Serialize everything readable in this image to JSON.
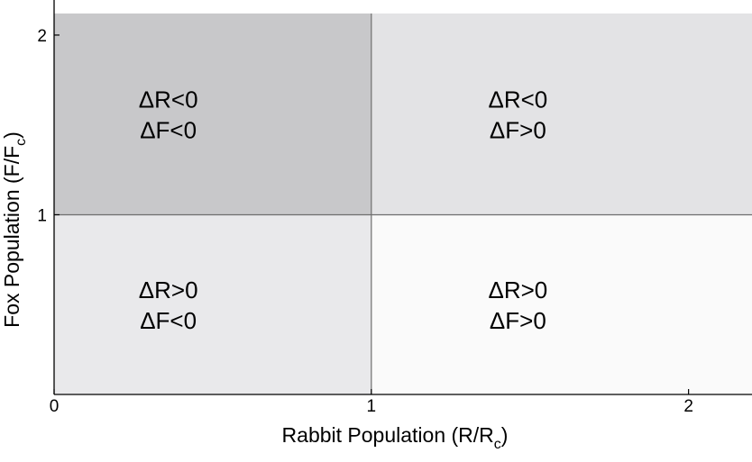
{
  "diagram": {
    "xlabel": {
      "main": "Rabbit Population (R/R",
      "sub": "c",
      "close": ")"
    },
    "ylabel": {
      "main": "Fox Population (F/F",
      "sub": "c",
      "close": ")"
    },
    "xlim": [
      0,
      2.2
    ],
    "ylim": [
      0,
      2.12
    ],
    "xticks": [
      {
        "value": 0,
        "label": "0"
      },
      {
        "value": 1,
        "label": "1"
      },
      {
        "value": 2,
        "label": "2"
      }
    ],
    "yticks": [
      {
        "value": 1,
        "label": "1"
      },
      {
        "value": 2,
        "label": "2"
      }
    ],
    "regions": [
      {
        "x": [
          0,
          1
        ],
        "y": [
          1,
          2.12
        ],
        "fill": "#c8c8ca",
        "line1": "ΔR<0",
        "line2": "ΔF<0"
      },
      {
        "x": [
          1,
          2.2
        ],
        "y": [
          1,
          2.12
        ],
        "fill": "#e3e3e5",
        "line1": "ΔR<0",
        "line2": "ΔF>0"
      },
      {
        "x": [
          0,
          1
        ],
        "y": [
          0,
          1
        ],
        "fill": "#e9e9eb",
        "line1": "ΔR>0",
        "line2": "ΔF<0"
      },
      {
        "x": [
          1,
          2.2
        ],
        "y": [
          0,
          1
        ],
        "fill": "#fafafa",
        "line1": "ΔR>0",
        "line2": "ΔF>0"
      }
    ],
    "divider_color": "#6e6e6e"
  }
}
